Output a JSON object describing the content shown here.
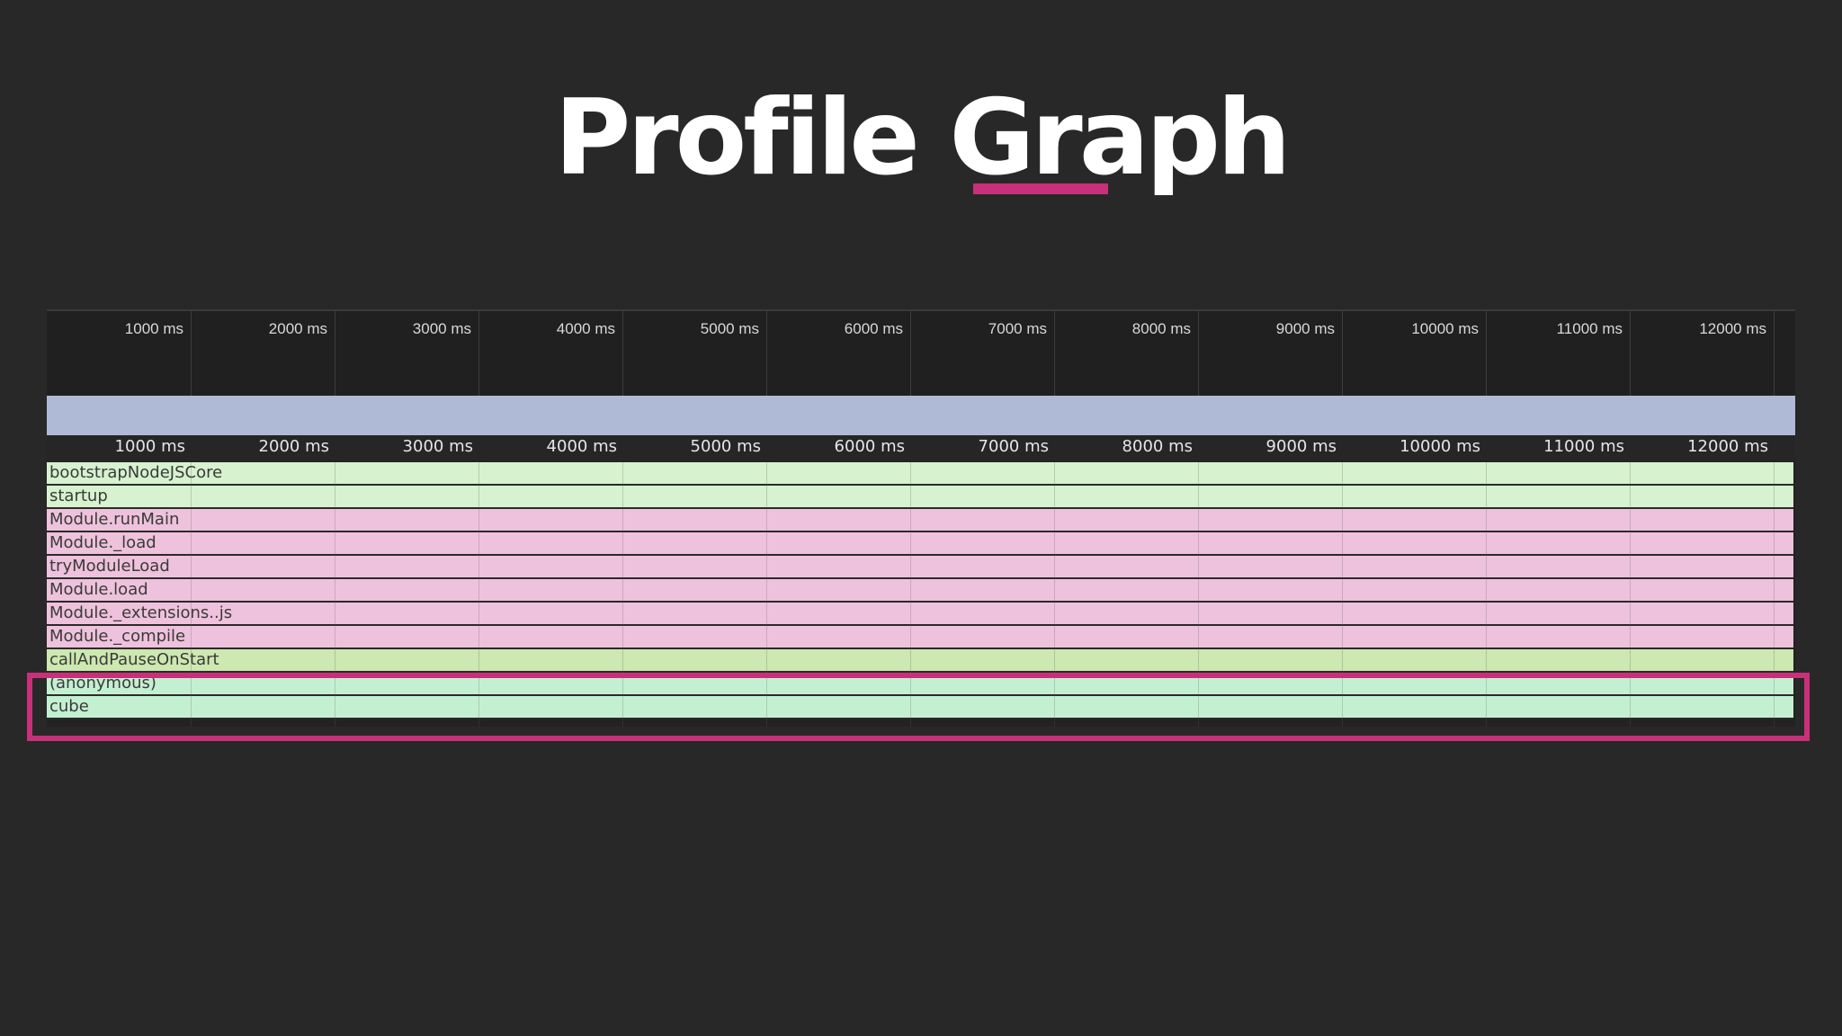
{
  "slide": {
    "title": "Profile Graph",
    "accent_color": "#c8307a"
  },
  "timeline": {
    "overview_ticks": [
      "1000 ms",
      "2000 ms",
      "3000 ms",
      "4000 ms",
      "5000 ms",
      "6000 ms",
      "7000 ms",
      "8000 ms",
      "9000 ms",
      "10000 ms",
      "11000 ms",
      "12000 ms"
    ],
    "ruler_ticks": [
      "1000 ms",
      "2000 ms",
      "3000 ms",
      "4000 ms",
      "5000 ms",
      "6000 ms",
      "7000 ms",
      "8000 ms",
      "9000 ms",
      "10000 ms",
      "11000 ms",
      "12000 ms"
    ],
    "overview_bar_color": "#aebad6"
  },
  "flame": {
    "frames": [
      {
        "label": "bootstrapNodeJSCore",
        "color": "#d6f2cf"
      },
      {
        "label": "startup",
        "color": "#d6f2cf"
      },
      {
        "label": "Module.runMain",
        "color": "#eec2dc"
      },
      {
        "label": "Module._load",
        "color": "#eec2dc"
      },
      {
        "label": "tryModuleLoad",
        "color": "#eec2dc"
      },
      {
        "label": "Module.load",
        "color": "#eec2dc"
      },
      {
        "label": "Module._extensions..js",
        "color": "#eec2dc"
      },
      {
        "label": "Module._compile",
        "color": "#eec2dc"
      },
      {
        "label": "callAndPauseOnStart",
        "color": "#cde8b0"
      },
      {
        "label": "(anonymous)",
        "color": "#c4f0d2"
      },
      {
        "label": "cube",
        "color": "#c4f0d2"
      }
    ]
  }
}
